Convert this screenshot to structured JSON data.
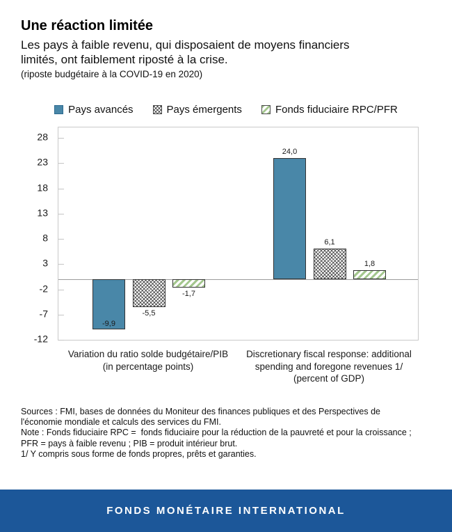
{
  "header": {
    "title": "Une réaction limitée",
    "subtitle_lines": [
      "Les pays à faible revenu, qui disposaient de moyens financiers",
      "limités, ont faiblement riposté à la crise."
    ],
    "caption": "(riposte budgétaire à la COVID-19 en 2020)"
  },
  "legend": [
    {
      "label": "Pays avancés",
      "pattern": "solid",
      "color": "#4987a8"
    },
    {
      "label": "Pays émergents",
      "pattern": "crosshatch",
      "color": "#333333"
    },
    {
      "label": "Fonds fiduciaire RPC/PFR",
      "pattern": "diagonal",
      "color": "#a4c78e"
    }
  ],
  "chart_data": {
    "type": "bar",
    "categories": [
      {
        "lines": [
          "Variation du ratio solde budgétaire/PIB",
          "(in percentage points)"
        ]
      },
      {
        "lines": [
          "Discretionary fiscal response: additional",
          "spending and foregone revenues 1/",
          "(percent of GDP)"
        ]
      }
    ],
    "series": [
      {
        "name": "Pays avancés",
        "pattern": "solid",
        "values": [
          -9.9,
          24.0
        ],
        "labels": [
          "-9,9",
          "24,0"
        ]
      },
      {
        "name": "Pays émergents",
        "pattern": "crosshatch",
        "values": [
          -5.5,
          6.1
        ],
        "labels": [
          "-5,5",
          "6,1"
        ]
      },
      {
        "name": "Fonds fiduciaire RPC/PFR",
        "pattern": "diagonal",
        "values": [
          -1.7,
          1.8
        ],
        "labels": [
          "-1,7",
          "1,8"
        ]
      }
    ],
    "y_ticks": [
      28,
      23,
      18,
      13,
      8,
      3,
      -2,
      -7,
      -12
    ],
    "axis_max": 30.1,
    "axis_min": -12,
    "grid": false,
    "legend_position": "top"
  },
  "footnotes": {
    "lines": [
      "Sources : FMI, bases de données du Moniteur des finances publiques et des Perspectives de",
      "l'économie mondiale et calculs des services du FMI.",
      "Note : Fonds fiduciaire RPC =  fonds fiduciaire pour la réduction de la pauvreté et pour la croissance ;",
      "PFR = pays à faible revenu ; PIB = produit intérieur brut.",
      "1/ Y compris sous forme de fonds propres, prêts et garanties."
    ]
  },
  "banner": {
    "label": "FONDS MONÉTAIRE INTERNATIONAL",
    "color": "#1c5799"
  }
}
